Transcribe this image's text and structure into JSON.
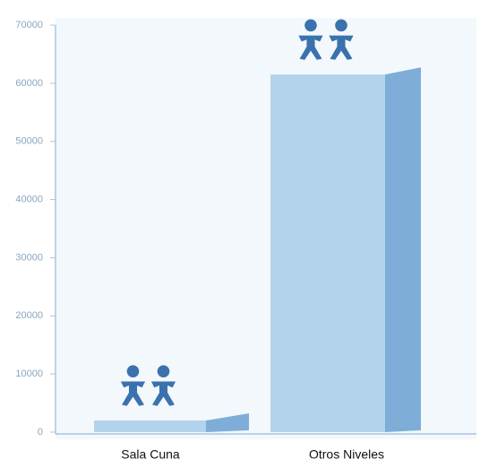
{
  "chart_data": {
    "type": "bar",
    "categories": [
      "Sala Cuna",
      "Otros Niveles"
    ],
    "values": [
      2000,
      61500
    ],
    "color": "#b3d3ec",
    "side_color": "#7eaed8",
    "ylim": [
      0,
      70000
    ],
    "yticks": [
      0,
      10000,
      20000,
      30000,
      40000,
      50000,
      60000,
      70000
    ]
  }
}
